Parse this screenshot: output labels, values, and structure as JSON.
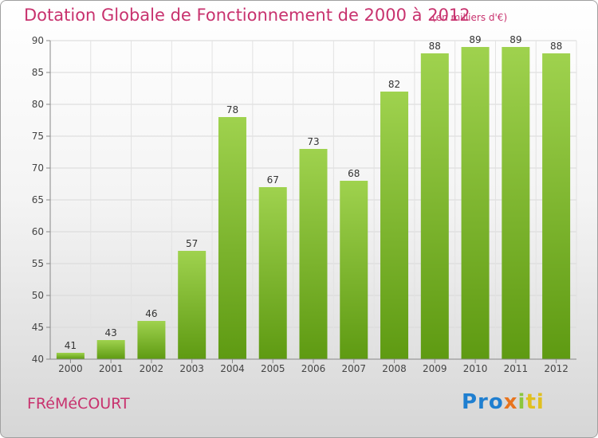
{
  "header": {
    "title": "Dotation Globale de Fonctionnement de 2000 à 2012",
    "unit": "(en milliers d'€)"
  },
  "footer": {
    "city": "FRéMéCOURT",
    "logo": "Proxiti"
  },
  "colors": {
    "title": "#c8326e",
    "bar_top": "#9fd24e",
    "bar_bottom": "#5e9a12"
  },
  "chart_data": {
    "type": "bar",
    "title": "Dotation Globale de Fonctionnement de 2000 à 2012",
    "xlabel": "",
    "ylabel": "",
    "categories": [
      "2000",
      "2001",
      "2002",
      "2003",
      "2004",
      "2005",
      "2006",
      "2007",
      "2008",
      "2009",
      "2010",
      "2011",
      "2012"
    ],
    "values": [
      41,
      43,
      46,
      57,
      78,
      67,
      73,
      68,
      82,
      88,
      89,
      89,
      88
    ],
    "ylim": [
      40,
      90
    ],
    "yticks": [
      40,
      45,
      50,
      55,
      60,
      65,
      70,
      75,
      80,
      85,
      90
    ],
    "grid": true,
    "legend": "none"
  }
}
